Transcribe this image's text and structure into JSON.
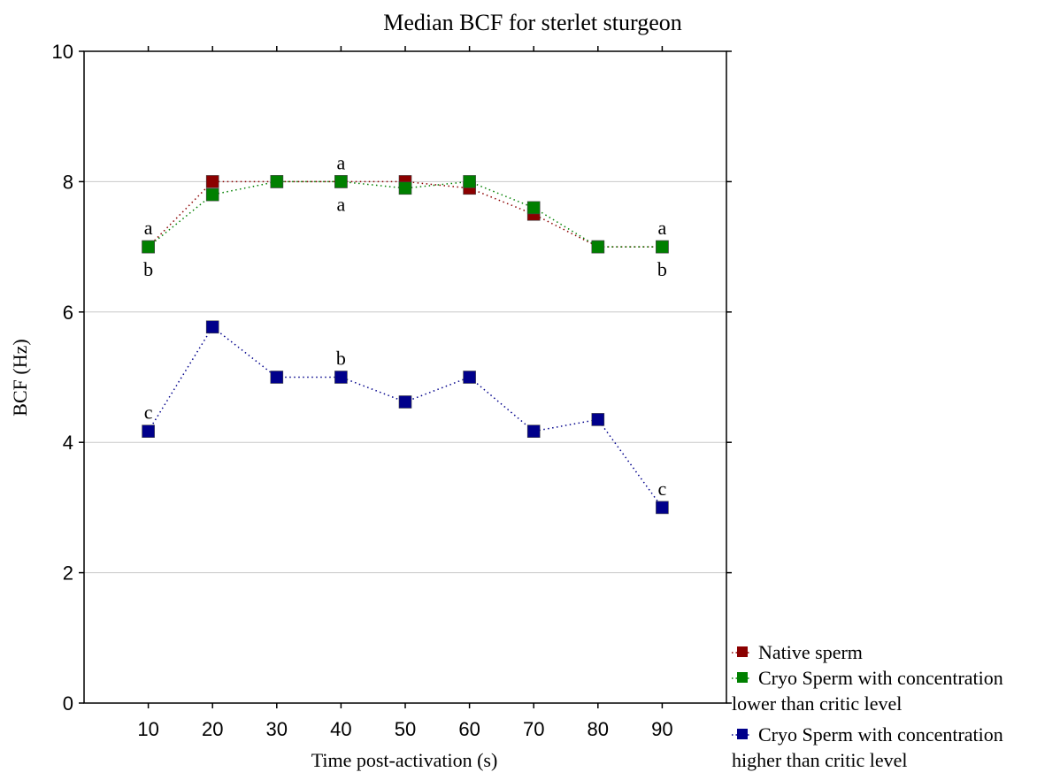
{
  "chart_data": {
    "type": "line",
    "title": "Median BCF for sterlet sturgeon",
    "xlabel": "Time post-activation (s)",
    "ylabel": "BCF (Hz)",
    "x": [
      10,
      20,
      30,
      40,
      50,
      60,
      70,
      80,
      90
    ],
    "xlim": [
      0,
      100
    ],
    "ylim": [
      0,
      10
    ],
    "yticks": [
      0,
      2,
      4,
      6,
      8,
      10
    ],
    "grid": true,
    "legend_position": "bottom-right-outside",
    "series": [
      {
        "name": "Native sperm",
        "color": "#8b0000",
        "values": [
          7,
          8,
          8,
          8,
          8,
          7.9,
          7.5,
          7,
          7
        ]
      },
      {
        "name": "Cryo Sperm with concentration lower than critic level",
        "color": "#008000",
        "values": [
          7,
          7.8,
          8,
          8,
          7.9,
          8,
          7.6,
          7,
          7
        ]
      },
      {
        "name": "Cryo Sperm with concentration higher than critic level",
        "color": "#00008b",
        "values": [
          4.17,
          5.77,
          5,
          5,
          4.62,
          5,
          4.17,
          4.35,
          3
        ]
      }
    ],
    "annotations": [
      {
        "text": "a",
        "x": 10,
        "y": 7,
        "pos": "above"
      },
      {
        "text": "b",
        "x": 10,
        "y": 7,
        "pos": "below"
      },
      {
        "text": "a",
        "x": 40,
        "y": 8,
        "pos": "above"
      },
      {
        "text": "a",
        "x": 40,
        "y": 8,
        "pos": "below"
      },
      {
        "text": "a",
        "x": 90,
        "y": 7,
        "pos": "above"
      },
      {
        "text": "b",
        "x": 90,
        "y": 7,
        "pos": "below"
      },
      {
        "text": "c",
        "x": 10,
        "y": 4.17,
        "pos": "above"
      },
      {
        "text": "b",
        "x": 40,
        "y": 5,
        "pos": "above"
      },
      {
        "text": "c",
        "x": 90,
        "y": 3,
        "pos": "above"
      }
    ]
  }
}
